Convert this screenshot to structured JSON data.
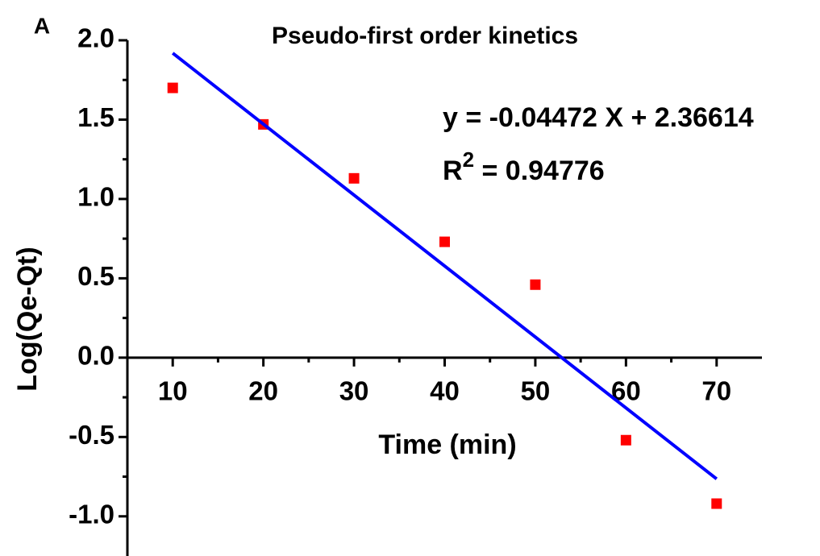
{
  "chart_data": {
    "type": "scatter",
    "panel_label": "A",
    "title": "Pseudo-first order kinetics",
    "xlabel": "Time (min)",
    "ylabel": "Log(Qe-Qt)",
    "annotations": {
      "equation": "y = -0.04472 X + 2.36614",
      "r2_base": "R",
      "r2_sup": "2",
      "r2_rest": " = 0.94776"
    },
    "x": [
      10,
      20,
      30,
      40,
      50,
      60,
      70
    ],
    "series": [
      {
        "name": "Log(Qe-Qt)",
        "color": "#ff0000",
        "values": [
          1.7,
          1.47,
          1.13,
          0.73,
          0.46,
          -0.52,
          -0.92
        ]
      },
      {
        "name": "Linear fit",
        "color": "#0000ff",
        "kind": "line",
        "x": [
          10,
          70
        ],
        "values": [
          1.919,
          -0.764
        ]
      }
    ],
    "xlim": [
      5,
      75
    ],
    "ylim": [
      -1.25,
      2.0
    ],
    "xticks": [
      10,
      20,
      30,
      40,
      50,
      60,
      70
    ],
    "x_minor_ticks": [
      15,
      25,
      35,
      45,
      55,
      65
    ],
    "yticks": [
      {
        "value": 2.0,
        "label": "2.0"
      },
      1.5,
      {
        "value": 1.0,
        "label": "1.0"
      },
      0.5,
      {
        "value": 0.0,
        "label": "0.0"
      },
      -0.5,
      {
        "value": -1.0,
        "label": "-1.0"
      }
    ],
    "y_minor_ticks": [
      1.75,
      1.25,
      0.75,
      0.25,
      -0.25,
      -0.75
    ]
  }
}
